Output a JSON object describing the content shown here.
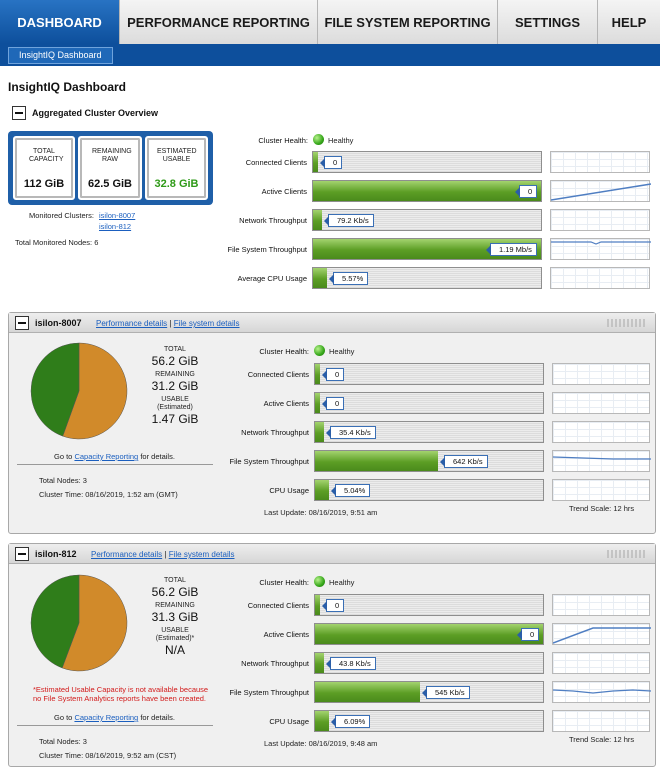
{
  "nav": {
    "tabs": [
      {
        "label": "DASHBOARD"
      },
      {
        "label": "PERFORMANCE REPORTING"
      },
      {
        "label": "FILE SYSTEM REPORTING"
      },
      {
        "label": "SETTINGS"
      },
      {
        "label": "HELP"
      }
    ],
    "subtab": "InsightIQ Dashboard"
  },
  "page_title": "InsightIQ Dashboard",
  "labels": {
    "cluster_health": "Cluster Health:",
    "healthy": "Healthy",
    "connected_clients": "Connected Clients",
    "active_clients": "Active Clients",
    "network_throughput": "Network Throughput",
    "fs_throughput": "File System Throughput",
    "avg_cpu": "Average CPU Usage",
    "cpu": "CPU Usage",
    "total": "TOTAL",
    "remaining": "REMAINING",
    "usable": "USABLE",
    "estimated": "(Estimated)",
    "estimated_star": "(Estimated)*",
    "goto_prefix": "Go to",
    "capacity_reporting": "Capacity Reporting",
    "goto_suffix": "for details.",
    "perf_details": "Performance details",
    "sep": "|",
    "fs_details": "File system details",
    "trend_scale": "Trend Scale: 12 hrs"
  },
  "aggregated": {
    "title": "Aggregated Cluster Overview",
    "total_capacity_label": "TOTAL CAPACITY",
    "total_capacity": "112 GiB",
    "remaining_raw_label": "REMAINING RAW",
    "remaining_raw": "62.5 GiB",
    "estimated_usable_label": "ESTIMATED USABLE",
    "estimated_usable": "32.8 GiB",
    "monitored_label": "Monitored Clusters:",
    "monitored": [
      "isilon-8007",
      "isilon-812"
    ],
    "nodes_text": "Total Monitored Nodes: 6",
    "metrics": {
      "connected": {
        "value": "0",
        "fill": 0.02
      },
      "active": {
        "value": "0",
        "fill": 1.0
      },
      "network": {
        "value": "79.2 Kb/s",
        "fill": 0.04
      },
      "fs": {
        "value": "1.19 Mb/s",
        "fill": 1.0
      },
      "cpu": {
        "value": "5.57%",
        "fill": 0.06
      }
    }
  },
  "clusters": [
    {
      "name": "isilon-8007",
      "total": "56.2 GiB",
      "remaining": "31.2 GiB",
      "usable": "1.47 GiB",
      "nodes": "Total Nodes: 3",
      "cluster_time": "Cluster Time: 08/16/2019, 1:52 am (GMT)",
      "last_update": "Last Update: 08/16/2019, 9:51 am",
      "note": "",
      "pie": {
        "used_fraction": 0.445,
        "remaining_fraction": 0.555
      },
      "metrics": {
        "connected": {
          "value": "0",
          "fill": 0.02
        },
        "active": {
          "value": "0",
          "fill": 0.02
        },
        "network": {
          "value": "35.4 Kb/s",
          "fill": 0.04
        },
        "fs": {
          "value": "642 Kb/s",
          "fill": 0.54
        },
        "cpu": {
          "value": "5.04%",
          "fill": 0.06
        }
      }
    },
    {
      "name": "isilon-812",
      "total": "56.2 GiB",
      "remaining": "31.3 GiB",
      "usable": "N/A",
      "nodes": "Total Nodes: 3",
      "cluster_time": "Cluster Time: 08/16/2019, 9:52 am (CST)",
      "last_update": "Last Update: 08/16/2019, 9:48 am",
      "note": "*Estimated Usable Capacity is not available because no File System Analytics reports have been created.",
      "pie": {
        "used_fraction": 0.443,
        "remaining_fraction": 0.557
      },
      "metrics": {
        "connected": {
          "value": "0",
          "fill": 0.02
        },
        "active": {
          "value": "0",
          "fill": 1.0
        },
        "network": {
          "value": "43.8 Kb/s",
          "fill": 0.04
        },
        "fs": {
          "value": "545 Kb/s",
          "fill": 0.46
        },
        "cpu": {
          "value": "6.09%",
          "fill": 0.06
        }
      }
    }
  ],
  "colors": {
    "nav_active": "#0d4f9c",
    "healthy_green": "#36a71a",
    "bar_green": "#5c9e25",
    "pie_orange": "#d18a2a",
    "pie_green": "#2f7d1a",
    "note_red": "#d21b1b"
  }
}
